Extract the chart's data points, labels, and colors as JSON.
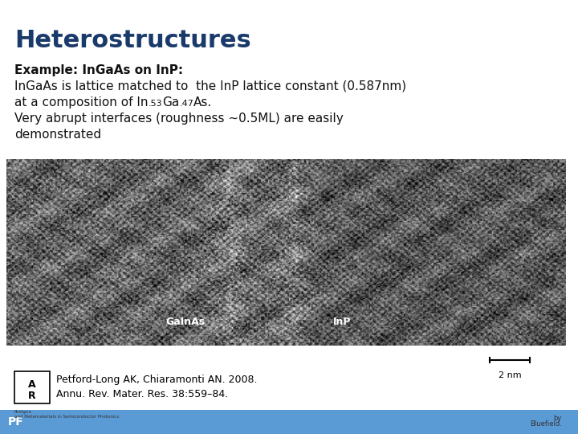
{
  "title": "Heterostructures",
  "title_color": "#1a3a6b",
  "title_fontsize": 22,
  "bg_color": "#ffffff",
  "example_label": "Example: InGaAs on InP:",
  "line2": "InGaAs is lattice matched to  the InP lattice constant (0.587nm)",
  "line3a": "at a composition of In",
  "line3b": ".53",
  "line3c": "Ga",
  "line3d": ".47",
  "line3e": "As.",
  "line4": "Very abrupt interfaces (roughness ~0.5ML) are easily",
  "line5": "demonstrated",
  "scalebar_text": "2 nm",
  "label_gainAs": "GaInAs",
  "label_inp": "InP",
  "ref_line1": "Petford-Long AK, Chiaramonti AN. 2008.",
  "ref_line2": "Annu. Rev. Mater. Res. 38:559–84.",
  "bottom_bar_color": "#5b9bd5",
  "text_color": "#111111",
  "base_fs": 11,
  "sub_fs": 8,
  "example_bold_fs": 11
}
